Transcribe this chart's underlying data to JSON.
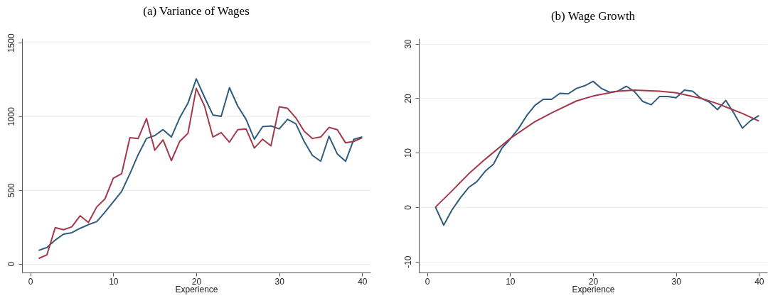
{
  "chart_data": [
    {
      "type": "line",
      "title": "(a) Variance of Wages",
      "xlabel": "Experience",
      "xlim": [
        -1,
        41
      ],
      "xticks": [
        0,
        10,
        20,
        30,
        40
      ],
      "ylim": [
        -60,
        1530
      ],
      "yticks": [
        0,
        500,
        {
          "value": 1000,
          "label": "1000"
        },
        {
          "value": 1500,
          "label": "1500"
        }
      ],
      "grid": "y",
      "x": [
        1,
        2,
        3,
        4,
        5,
        6,
        7,
        8,
        9,
        10,
        11,
        12,
        13,
        14,
        15,
        16,
        17,
        18,
        19,
        20,
        21,
        22,
        23,
        24,
        25,
        26,
        27,
        28,
        29,
        30,
        31,
        32,
        33,
        34,
        35,
        36,
        37,
        38,
        39,
        40
      ],
      "series": [
        {
          "color": "#2e5b7e",
          "values": [
            90,
            110,
            160,
            200,
            210,
            240,
            265,
            285,
            350,
            420,
            490,
            610,
            740,
            850,
            870,
            910,
            860,
            990,
            1090,
            1255,
            1130,
            1010,
            1000,
            1195,
            1070,
            980,
            845,
            930,
            935,
            915,
            980,
            950,
            830,
            735,
            695,
            865,
            745,
            695,
            845,
            860
          ]
        },
        {
          "color": "#a3384a",
          "values": [
            35,
            60,
            245,
            230,
            250,
            325,
            280,
            385,
            440,
            580,
            610,
            855,
            850,
            985,
            770,
            840,
            700,
            830,
            885,
            1190,
            1070,
            860,
            890,
            825,
            910,
            915,
            785,
            845,
            800,
            1065,
            1055,
            990,
            900,
            850,
            860,
            925,
            910,
            820,
            830,
            855
          ]
        }
      ]
    },
    {
      "type": "line",
      "title": "(b) Wage Growth",
      "xlabel": "Experience",
      "xlim": [
        -1,
        41
      ],
      "xticks": [
        0,
        10,
        20,
        30,
        40
      ],
      "ylim": [
        -12,
        31
      ],
      "yticks": [
        -10,
        0,
        10,
        20,
        30
      ],
      "grid": "y",
      "x": [
        1,
        2,
        3,
        4,
        5,
        6,
        7,
        8,
        9,
        10,
        11,
        12,
        13,
        14,
        15,
        16,
        17,
        18,
        19,
        20,
        21,
        22,
        23,
        24,
        25,
        26,
        27,
        28,
        29,
        30,
        31,
        32,
        33,
        34,
        35,
        36,
        37,
        38,
        39,
        40
      ],
      "series": [
        {
          "color": "#2e5b7e",
          "values": [
            0,
            -3.3,
            -0.5,
            1.7,
            3.6,
            4.7,
            6.6,
            7.9,
            10.8,
            12.5,
            14.4,
            16.8,
            18.7,
            19.8,
            19.8,
            20.9,
            20.8,
            21.8,
            22.3,
            23.1,
            21.8,
            21.1,
            21.3,
            22.2,
            21.2,
            19.4,
            18.8,
            20.3,
            20.3,
            20.1,
            21.5,
            21.3,
            20.0,
            19.3,
            17.9,
            19.6,
            17.2,
            14.5,
            15.9,
            16.8
          ]
        },
        {
          "color": "#a3384a",
          "x": [
            1,
            3,
            5,
            7,
            10,
            13,
            15,
            18,
            20,
            23,
            25,
            28,
            30,
            33,
            35,
            38,
            40
          ],
          "values": [
            0,
            3.0,
            6.1,
            8.8,
            12.6,
            15.7,
            17.3,
            19.5,
            20.4,
            21.3,
            21.5,
            21.3,
            21.0,
            20.0,
            19.0,
            17.2,
            15.8
          ]
        }
      ]
    }
  ]
}
